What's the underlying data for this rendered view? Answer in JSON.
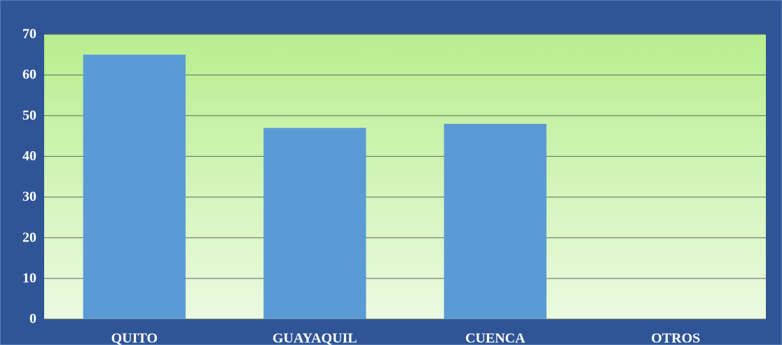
{
  "chart_data": {
    "type": "bar",
    "categories": [
      "QUITO",
      "GUAYAQUIL",
      "CUENCA",
      "OTROS"
    ],
    "values": [
      65,
      47,
      48,
      0
    ],
    "color": "#5b9bd5",
    "ylim": [
      0,
      70
    ],
    "yticks": [
      0,
      10,
      20,
      30,
      40,
      50,
      60,
      70
    ],
    "grid": true
  }
}
